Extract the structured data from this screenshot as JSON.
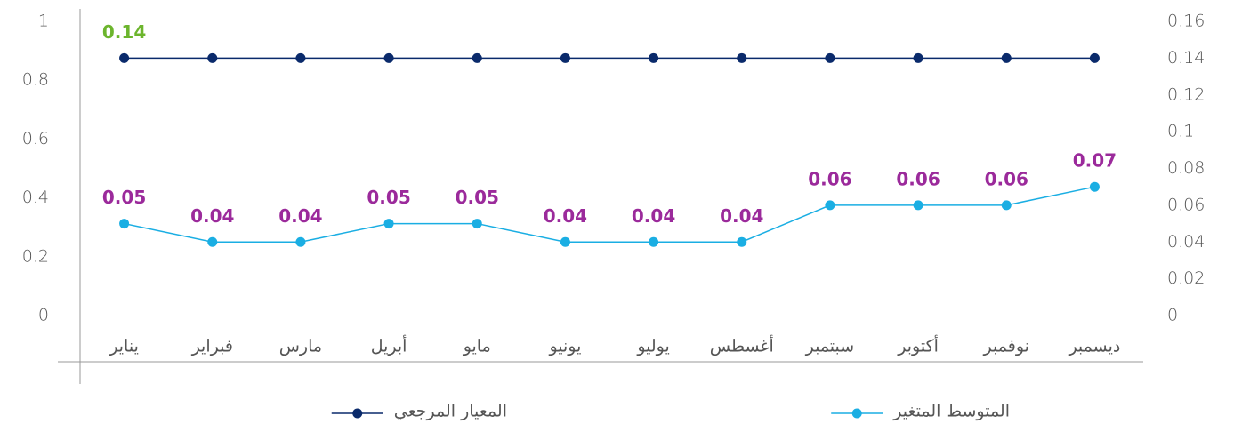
{
  "chart_data": {
    "type": "line",
    "categories": [
      "يناير",
      "فبراير",
      "مارس",
      "أبريل",
      "مايو",
      "يونيو",
      "يوليو",
      "أغسطس",
      "سبتمبر",
      "أكتوبر",
      "نوفمبر",
      "ديسمبر"
    ],
    "series": [
      {
        "name": "المتوسط المتغير",
        "color": "#1aaee3",
        "label_color": "#9b2a9b",
        "axis": "y2",
        "values": [
          0.05,
          0.04,
          0.04,
          0.05,
          0.05,
          0.04,
          0.04,
          0.04,
          0.06,
          0.06,
          0.06,
          0.07
        ]
      },
      {
        "name": "المعيار المرجعي",
        "color": "#0a2a6b",
        "label_color": "#6cb52d",
        "axis": "y2",
        "values": [
          0.14,
          0.14,
          0.14,
          0.14,
          0.14,
          0.14,
          0.14,
          0.14,
          0.14,
          0.14,
          0.14,
          0.14
        ],
        "value_labels": [
          "0.14",
          null,
          null,
          null,
          null,
          null,
          null,
          null,
          null,
          null,
          null,
          null
        ]
      }
    ],
    "ylim": [
      0,
      1
    ],
    "yticks": [
      0,
      0.2,
      0.4,
      0.6,
      0.8,
      1
    ],
    "y2lim": [
      0,
      0.16
    ],
    "y2ticks": [
      0,
      0.02,
      0.04,
      0.06,
      0.08,
      0.1,
      0.12,
      0.14,
      0.16
    ],
    "grid": false
  }
}
